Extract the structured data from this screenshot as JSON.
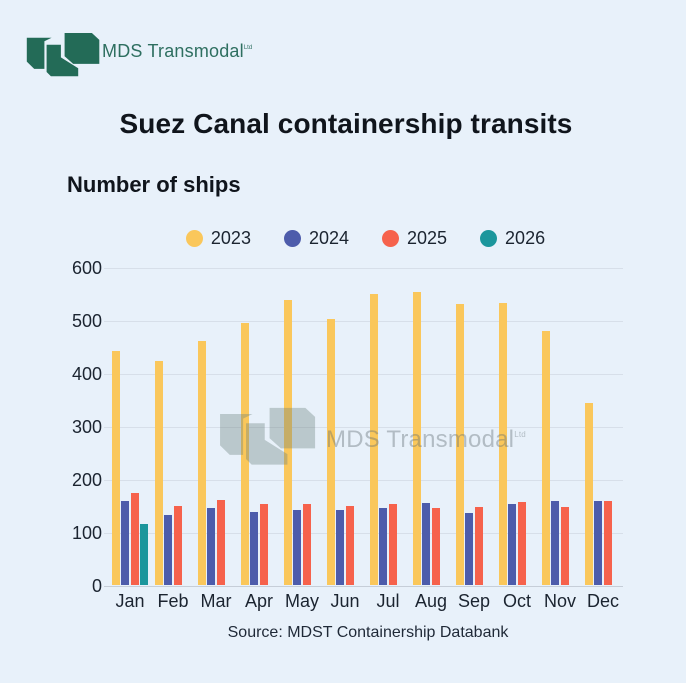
{
  "brand": {
    "name": "MDS Transmodal",
    "suffix": "Ltd"
  },
  "title": "Suez Canal containership transits",
  "y_axis_heading": "Number of ships",
  "source": "Source: MDST Containership Databank",
  "watermark": {
    "name": "MDS Transmodal",
    "suffix": "Ltd"
  },
  "colors": {
    "background": "#e8f1fa",
    "gridline": "#d7dfe9",
    "logo_green": "#236b57",
    "series_2023": "#fac75b",
    "series_2024": "#4d5cab",
    "series_2025": "#f6624c",
    "series_2026": "#1b969c"
  },
  "chart_data": {
    "type": "bar",
    "title": "Suez Canal containership transits",
    "ylabel": "Number of ships",
    "xlabel": "",
    "ylim": [
      0,
      600
    ],
    "yticks": [
      0,
      100,
      200,
      300,
      400,
      500,
      600
    ],
    "grid": true,
    "legend_position": "top",
    "categories": [
      "Jan",
      "Feb",
      "Mar",
      "Apr",
      "May",
      "Jun",
      "Jul",
      "Aug",
      "Sep",
      "Oct",
      "Nov",
      "Dec"
    ],
    "series": [
      {
        "name": "2023",
        "color": "#fac75b",
        "values": [
          441,
          422,
          461,
          494,
          538,
          501,
          550,
          553,
          531,
          532,
          480,
          343
        ]
      },
      {
        "name": "2024",
        "color": "#4d5cab",
        "values": [
          158,
          133,
          145,
          137,
          141,
          141,
          146,
          154,
          135,
          152,
          158,
          158
        ]
      },
      {
        "name": "2025",
        "color": "#f6624c",
        "values": [
          174,
          150,
          160,
          152,
          153,
          149,
          152,
          146,
          147,
          157,
          148,
          158
        ]
      },
      {
        "name": "2026",
        "color": "#1b969c",
        "values": [
          115,
          null,
          null,
          null,
          null,
          null,
          null,
          null,
          null,
          null,
          null,
          null
        ]
      }
    ],
    "source": "Source: MDST Containership Databank"
  }
}
